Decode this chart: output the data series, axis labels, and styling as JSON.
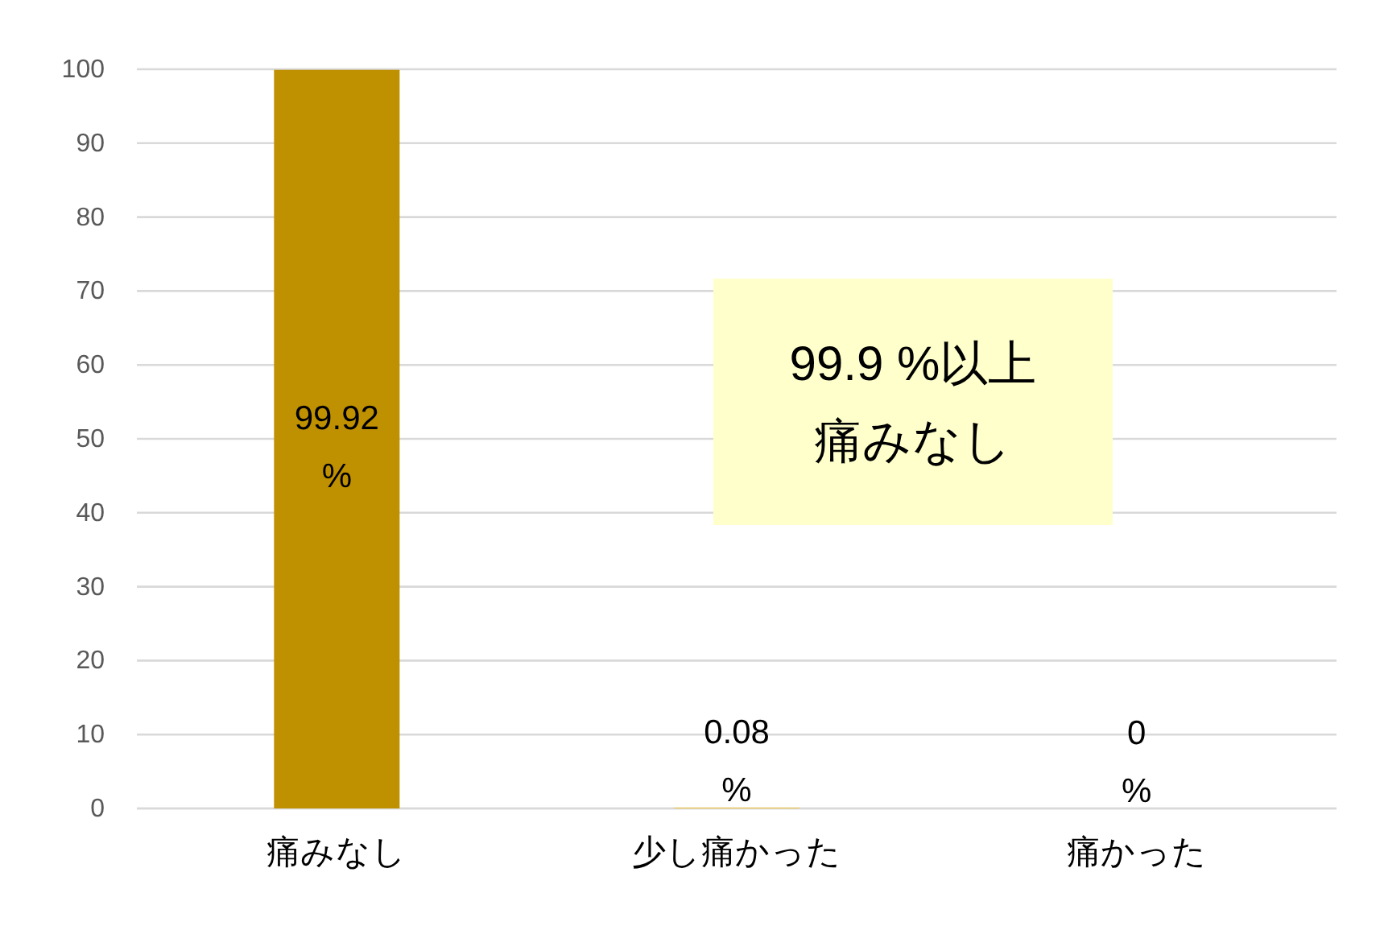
{
  "chart_data": {
    "type": "bar",
    "categories": [
      "痛みなし",
      "少し痛かった",
      "痛かった"
    ],
    "values": [
      99.92,
      0.08,
      0
    ],
    "colors": [
      "#bf9000",
      "#ffc000",
      "#bf9000"
    ],
    "value_labels": [
      "99.92 %",
      "0.08 %",
      "0 %"
    ],
    "ylim": [
      0,
      100
    ],
    "yticks": [
      0,
      10,
      20,
      30,
      40,
      50,
      60,
      70,
      80,
      90,
      100
    ],
    "grid": "y",
    "annotations": [
      "99.9 %以上",
      "痛みなし"
    ]
  }
}
